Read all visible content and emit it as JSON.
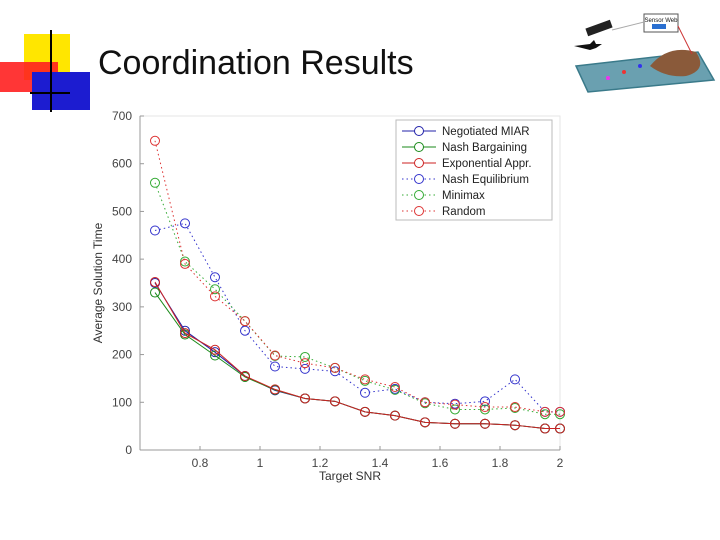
{
  "slide": {
    "title": "Coordination Results"
  },
  "logo": {
    "label": "Sensor Web",
    "colors": {
      "ground": "#3a7a8a",
      "land": "#8a5a3a",
      "satellite": "#222222"
    }
  },
  "chart_data": {
    "type": "line",
    "xlabel": "Target SNR",
    "ylabel": "Average Solution Time",
    "xlim": [
      0.6,
      2.0
    ],
    "ylim": [
      0,
      700
    ],
    "xticks": [
      0.8,
      1.0,
      1.2,
      1.4,
      1.6,
      1.8,
      2.0
    ],
    "xtick_labels": [
      "0.8",
      "1",
      "1.2",
      "1.4",
      "1.6",
      "1.8",
      "2"
    ],
    "yticks": [
      0,
      100,
      200,
      300,
      400,
      500,
      600,
      700
    ],
    "grid": false,
    "legend_position": "top-right",
    "x": [
      0.65,
      0.75,
      0.85,
      0.95,
      1.05,
      1.15,
      1.25,
      1.35,
      1.45,
      1.55,
      1.65,
      1.75,
      1.85,
      1.95,
      2.0
    ],
    "series": [
      {
        "name": "Negotiated MIAR",
        "color": "#2222aa",
        "style": "solid",
        "values": [
          350,
          250,
          205,
          155,
          125,
          108,
          102,
          80,
          72,
          58,
          55,
          55,
          52,
          45,
          45
        ]
      },
      {
        "name": "Nash Bargaining",
        "color": "#1a8a1a",
        "style": "solid",
        "values": [
          330,
          242,
          198,
          153,
          126,
          108,
          102,
          80,
          72,
          58,
          55,
          55,
          52,
          45,
          45
        ]
      },
      {
        "name": "Exponential Appr.",
        "color": "#cc2222",
        "style": "solid",
        "values": [
          352,
          245,
          210,
          155,
          127,
          108,
          102,
          80,
          72,
          58,
          55,
          55,
          52,
          45,
          45
        ]
      },
      {
        "name": "Nash Equilibrium",
        "color": "#3333cc",
        "style": "dotted",
        "values": [
          460,
          475,
          362,
          250,
          175,
          170,
          165,
          120,
          128,
          100,
          97,
          102,
          148,
          80,
          80
        ]
      },
      {
        "name": "Minimax",
        "color": "#33aa33",
        "style": "dotted",
        "values": [
          560,
          395,
          337,
          270,
          197,
          195,
          172,
          145,
          126,
          98,
          85,
          85,
          88,
          75,
          75
        ]
      },
      {
        "name": "Random",
        "color": "#dd3333",
        "style": "dotted",
        "values": [
          648,
          390,
          322,
          270,
          198,
          182,
          172,
          148,
          132,
          100,
          95,
          90,
          90,
          80,
          80
        ]
      }
    ]
  }
}
